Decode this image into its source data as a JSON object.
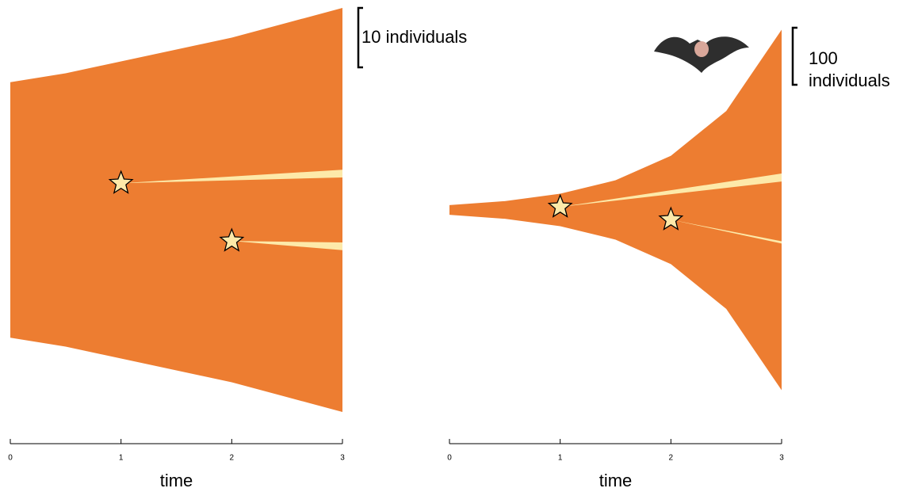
{
  "chart_data": [
    {
      "type": "muller",
      "color": "#ed7d31",
      "mutant_color": "#fde9a9",
      "x": [
        0,
        0.5,
        1,
        1.5,
        2,
        2.5,
        3
      ],
      "values": [
        43,
        46,
        50,
        54,
        58,
        63,
        68
      ],
      "xlim": [
        0,
        3
      ],
      "xticks": [
        0,
        1,
        2,
        3
      ],
      "xlabel": "time",
      "scale_bar": {
        "value": 10,
        "label": "10 individuals"
      },
      "mutations": [
        {
          "x": 1,
          "final_size": 1.3
        },
        {
          "x": 2,
          "final_size": 1.3
        }
      ]
    },
    {
      "type": "muller",
      "color": "#ed7d31",
      "mutant_color": "#fde9a9",
      "x": [
        0,
        0.5,
        1,
        1.5,
        2,
        2.5,
        3
      ],
      "values": [
        17,
        31,
        57,
        104,
        190,
        347,
        632
      ],
      "xlim": [
        0,
        3
      ],
      "xticks": [
        0,
        1,
        2,
        3
      ],
      "xlabel": "time",
      "scale_bar": {
        "value": 100,
        "label": "100 individuals"
      },
      "mutations": [
        {
          "x": 1,
          "final_size": 14
        },
        {
          "x": 2,
          "final_size": 4
        }
      ]
    }
  ]
}
